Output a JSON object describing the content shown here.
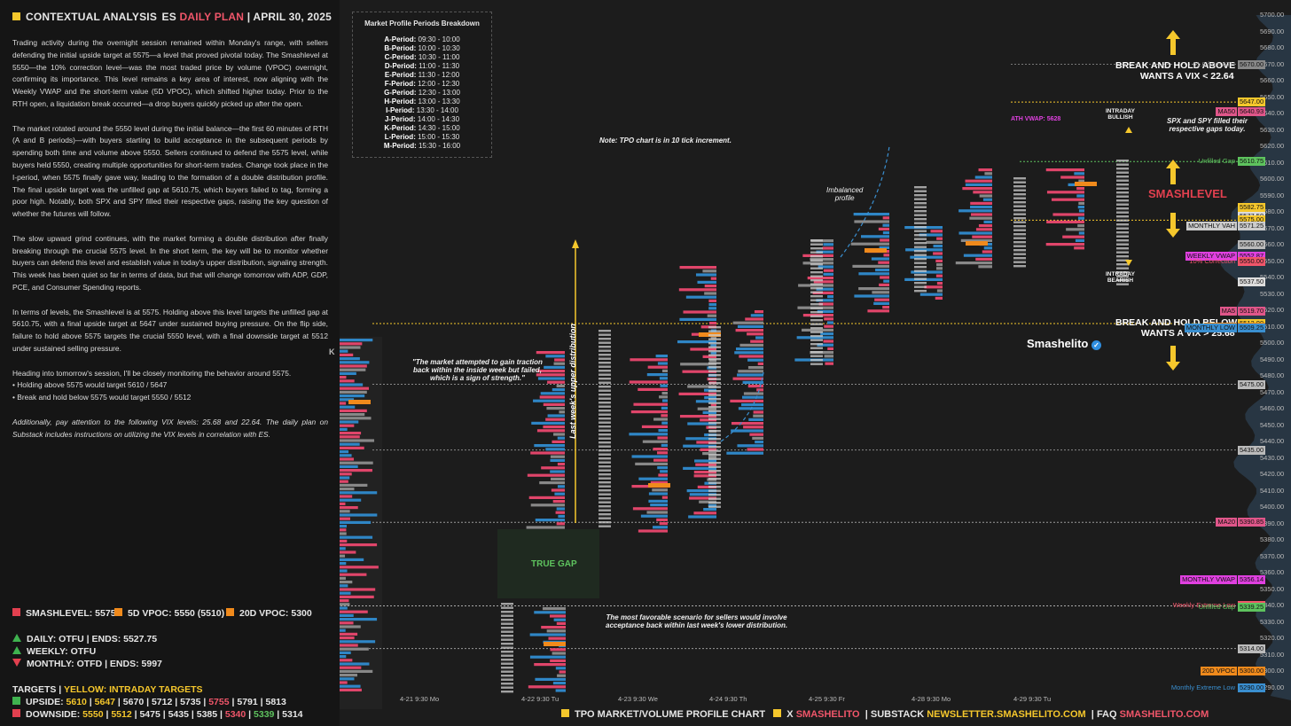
{
  "header": {
    "title": "CONTEXTUAL ANALYSIS",
    "plan_es": "ES",
    "plan_label": "DAILY PLAN",
    "date": "APRIL 30, 2025"
  },
  "analysis": {
    "p1": "Trading activity during the overnight session remained within Monday's range, with sellers defending the initial upside target at 5575—a level that proved pivotal today. The Smashlevel at 5550—the 10% correction level—was the most traded price by volume (VPOC) overnight, confirming its importance. This level remains a key area of interest, now aligning with the Weekly VWAP and the short-term value (5D VPOC), which shifted higher today. Prior to the RTH open, a liquidation break occurred—a drop buyers quickly picked up after the open.",
    "p2": "The market rotated around the 5550 level during the initial balance—the first 60 minutes of RTH (A and B periods)—with buyers starting to build acceptance in the subsequent periods by spending both time and volume above 5550. Sellers continued to defend the 5575 level, while buyers held 5550, creating multiple opportunities for short-term trades. Change took place in the I-period, when 5575 finally gave way, leading to the formation of a double distribution profile. The final upside target was the unfilled gap at 5610.75, which buyers failed to tag, forming a poor high. Notably, both SPX and SPY filled their respective gaps, raising the key question of whether the futures will follow.",
    "p3": "The slow upward grind continues, with the market forming a double distribution after finally breaking through the crucial 5575 level. In the short term, the key will be to monitor whether buyers can defend this level and establish value in today's upper distribution, signaling strength. This week has been quiet so far in terms of data, but that will change tomorrow with ADP, GDP, PCE, and Consumer Spending reports.",
    "p4": "In terms of levels, the Smashlevel is at 5575. Holding above this level targets the unfilled gap at 5610.75, with a final upside target at 5647 under sustained buying pressure. On the flip side, failure to hold above 5575 targets the crucial 5550 level, with a final downside target at 5512 under sustained selling pressure.",
    "p5": "Heading into tomorrow's session, I'll be closely monitoring the behavior around 5575.",
    "b1": "• Holding above 5575 would target 5610 / 5647",
    "b2": "• Break and hold below 5575 would target 5550 / 5512",
    "p6": "Additionally, pay attention to the following VIX levels: 25.68 and 22.64. The daily plan on Substack includes instructions on utilizing the VIX levels in correlation with ES."
  },
  "levels": {
    "smash": "SMASHLEVEL: 5575",
    "vpoc5": "5D VPOC: 5550 (5510)",
    "vpoc20": "20D VPOC: 5300",
    "daily": "DAILY: OTFU  |  ENDS: 5527.75",
    "weekly": "WEEKLY: OTFU",
    "monthly": "MONTHLY: OTFD  |  ENDS: 5997",
    "targets_label": "TARGETS  |",
    "targets_yellow": "YELLOW: INTRADAY TARGETS",
    "upside_label": "UPSIDE:",
    "upside": [
      "5610",
      "5647",
      "5670",
      "5712",
      "5735",
      "5755",
      "5791",
      "5813"
    ],
    "downside_label": "DOWNSIDE:",
    "downside": [
      "5550",
      "5512",
      "5475",
      "5435",
      "5385",
      "5340",
      "5339",
      "5314"
    ],
    "colors": {
      "smash": "#e2404f",
      "vpoc5": "#f08a1c",
      "vpoc20": "#f08a1c",
      "up": "#3fb24f",
      "down": "#e2404f",
      "target_yellow": "#f5c72c",
      "target_red": "#f0566a",
      "target_green": "#5ec35e"
    }
  },
  "periods": {
    "title": "Market Profile Periods Breakdown",
    "rows": [
      [
        "A-Period:",
        "09:30 - 10:00"
      ],
      [
        "B-Period:",
        "10:00 - 10:30"
      ],
      [
        "C-Period:",
        "10:30 - 11:00"
      ],
      [
        "D-Period:",
        "11:00 - 11:30"
      ],
      [
        "E-Period:",
        "11:30 - 12:00"
      ],
      [
        "F-Period:",
        "12:00 - 12:30"
      ],
      [
        "G-Period:",
        "12:30 - 13:00"
      ],
      [
        "H-Period:",
        "13:00 - 13:30"
      ],
      [
        "I-Period:",
        "13:30 - 14:00"
      ],
      [
        "J-Period:",
        "14:00 - 14:30"
      ],
      [
        "K-Period:",
        "14:30 - 15:00"
      ],
      [
        "L-Period:",
        "15:00 - 15:30"
      ],
      [
        "M-Period:",
        "15:30 - 16:00"
      ]
    ]
  },
  "notes": {
    "tpo": "Note: TPO chart is in 10 tick increment.",
    "traction": "\"The market attempted to gain traction\nback within the inside week but failed,\nwhich is a sign of strength.\"",
    "sellers": "The most favorable scenario for sellers would involve\nacceptance back within last week's lower distribution.",
    "imbalanced": "Imbalanced\nprofile",
    "spx": "SPX and SPY filled their\nrespective gaps today.",
    "intraday_bullish": "INTRADAY\nBULLISH",
    "intraday_bearish": "INTRADAY\nBEARISH",
    "last_week": "Last week's upper distribution",
    "true_gap": "TRUE GAP",
    "ath_vwap": "ATH VWAP: 5628",
    "hold_above": "BREAK AND HOLD ABOVE 5647\nWANTS A VIX < 22.64",
    "hold_below": "BREAK AND HOLD BELOW 5512\nWANTS A VIX > 25.68",
    "smashlevel": "SMASHLEVEL",
    "brand": "Smashelito",
    "k": "K"
  },
  "chart_data": {
    "type": "table",
    "y_axis": {
      "min": 5285,
      "max": 5700,
      "ticks": [
        5700,
        5690,
        5680,
        5670,
        5660,
        5650,
        5640,
        5630,
        5620,
        5610,
        5600,
        5590,
        5580,
        5570,
        5560,
        5550,
        5540,
        5530,
        5520,
        5510,
        5500,
        5490,
        5480,
        5470,
        5460,
        5450,
        5440,
        5430,
        5420,
        5410,
        5400,
        5390,
        5380,
        5370,
        5360,
        5350,
        5340,
        5330,
        5320,
        5310,
        5300,
        5290
      ]
    },
    "x_labels": [
      "4-21  9:30 Mo",
      "4-22  9:30 Tu",
      "4-23  9:30 We",
      "4-24  9:30 Th",
      "4-25  9:30 Fr",
      "4-28  9:30 Mo",
      "4-29  9:30 Tu"
    ],
    "levels": [
      {
        "label": "61.8 from ATH",
        "price": 5670,
        "value": "5670.00",
        "color": "#888888"
      },
      {
        "label": "",
        "price": 5647,
        "value": "5647.00",
        "color": "#f5c72c"
      },
      {
        "label": "MA50",
        "price": 5640.93,
        "value": "5640.93",
        "color": "#e0568a"
      },
      {
        "label": "Unfilled Gap",
        "price": 5610.75,
        "value": "5610.75",
        "color": "#5ec35e"
      },
      {
        "label": "",
        "price": 5582.75,
        "value": "5582.75",
        "color": "#f5c72c"
      },
      {
        "label": "",
        "price": 5577.5,
        "value": "5577.50",
        "color": "#dddddd"
      },
      {
        "label": "",
        "price": 5575,
        "value": "5575.00",
        "color": "#f5c72c"
      },
      {
        "label": "MONTHLY VAH",
        "price": 5571.25,
        "value": "5571.25",
        "color": "#cccccc"
      },
      {
        "label": "",
        "price": 5560,
        "value": "5560.00",
        "color": "#bbbbbb"
      },
      {
        "label": "WEEKLY VWAP",
        "price": 5552.87,
        "value": "5552.87",
        "color": "#e040e0"
      },
      {
        "label": "10% Correction",
        "price": 5550,
        "value": "5550.00",
        "color": "#f0566a"
      },
      {
        "label": "",
        "price": 5537.5,
        "value": "5537.50",
        "color": "#dddddd"
      },
      {
        "label": "MA5",
        "price": 5519.7,
        "value": "5519.70",
        "color": "#e0568a"
      },
      {
        "label": "",
        "price": 5512,
        "value": "5512.00",
        "color": "#f5c72c"
      },
      {
        "label": "5D VPOC",
        "price": 5510,
        "value": "5510.00",
        "color": "#f08a1c"
      },
      {
        "label": "MONTHLY LOW",
        "price": 5509.25,
        "value": "5509.25",
        "color": "#3a8fd0"
      },
      {
        "label": "",
        "price": 5475,
        "value": "5475.00",
        "color": "#bbbbbb"
      },
      {
        "label": "",
        "price": 5435,
        "value": "5435.00",
        "color": "#bbbbbb"
      },
      {
        "label": "MA20",
        "price": 5390.85,
        "value": "5390.85",
        "color": "#e0568a"
      },
      {
        "label": "MONTHLY VWAP",
        "price": 5356.14,
        "value": "5356.14",
        "color": "#e040e0"
      },
      {
        "label": "Weekly Extreme Low",
        "price": 5340,
        "value": "5340.00",
        "color": "#f0566a"
      },
      {
        "label": "Unfilled Gap",
        "price": 5339.25,
        "value": "5339.25",
        "color": "#5ec35e"
      },
      {
        "label": "",
        "price": 5314,
        "value": "5314.00",
        "color": "#bbbbbb"
      },
      {
        "label": "20D VPOC",
        "price": 5300,
        "value": "5300.00",
        "color": "#f08a1c"
      },
      {
        "label": "Monthly Extreme Low",
        "price": 5290,
        "value": "5290.00",
        "color": "#3a8fd0"
      }
    ]
  },
  "footer": {
    "chart": "TPO MARKET/VOLUME PROFILE CHART",
    "x": "X",
    "handle": "SMASHELITO",
    "substack": "SUBSTACK",
    "newsletter": "NEWSLETTER.SMASHELITO.COM",
    "faq": "FAQ",
    "faq_site": "SMASHELITO.COM"
  }
}
